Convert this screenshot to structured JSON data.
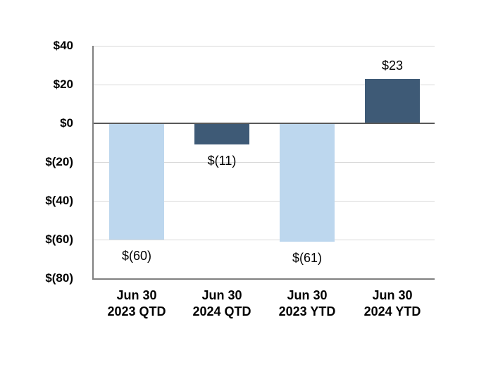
{
  "chart_data": {
    "type": "bar",
    "title": "",
    "categories": [
      [
        "Jun 30",
        "2023 QTD"
      ],
      [
        "Jun 30",
        "2024 QTD"
      ],
      [
        "Jun 30",
        "2023 YTD"
      ],
      [
        "Jun 30",
        "2024 YTD"
      ]
    ],
    "values": [
      -60,
      -11,
      -61,
      23
    ],
    "data_labels": [
      "$(60)",
      "$(11)",
      "$(61)",
      "$23"
    ],
    "bar_colors": [
      "#BDD7EE",
      "#3E5A76",
      "#BDD7EE",
      "#3E5A76"
    ],
    "y_axis": {
      "ticks": [
        40,
        20,
        0,
        -20,
        -40,
        -60,
        -80
      ],
      "tick_labels": [
        "$40",
        "$20",
        "$0",
        "$(20)",
        "$(40)",
        "$(60)",
        "$(80)"
      ],
      "range": [
        -80,
        40
      ]
    },
    "grid": true,
    "legend": false,
    "layout_hints": {
      "gridlines_horizontal_only": true,
      "zero_line_emphasized": true,
      "data_label_position": "outside-end"
    },
    "colors": {
      "light_blue": "#BDD7EE",
      "dark_blue": "#3E5A76",
      "zero_line": "#595959",
      "axis_line": "#808080",
      "gridline": "#D9D9D9",
      "text": "#000000",
      "background": "#FFFFFF"
    }
  }
}
